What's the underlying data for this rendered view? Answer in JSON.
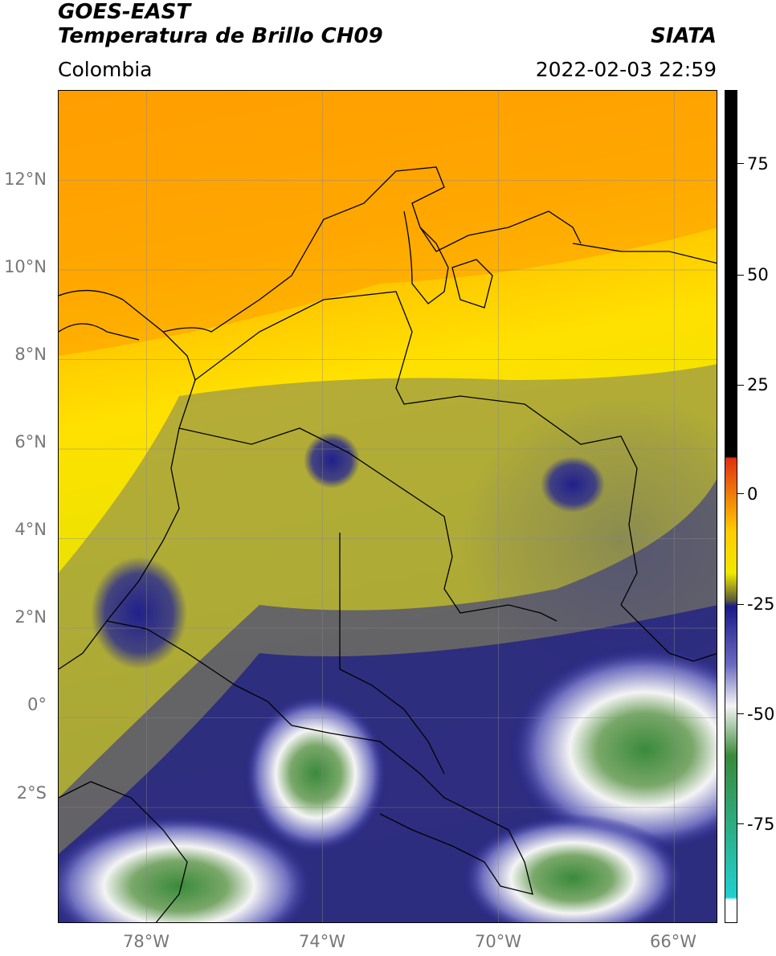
{
  "header": {
    "satellite": "GOES-EAST",
    "product": "Temperatura de Brillo CH09",
    "agency": "SIATA",
    "region": "Colombia",
    "datetime": "2022-02-03 22:59"
  },
  "map": {
    "lat_labels": [
      "12°N",
      "10°N",
      "8°N",
      "6°N",
      "4°N",
      "2°N",
      "0°",
      "2°S"
    ],
    "lon_labels": [
      "78°W",
      "74°W",
      "70°W",
      "66°W"
    ],
    "lat_range": [
      -4.6,
      14.0
    ],
    "lon_range": [
      -80.0,
      -65.0
    ],
    "grid": true
  },
  "colorbar": {
    "ticks": [
      "75",
      "50",
      "25",
      "0",
      "-25",
      "-50",
      "-75"
    ],
    "range": [
      -95,
      90
    ],
    "colors": {
      "positive": "#000000",
      "zero": "#e03010",
      "warm": "#ffcc00",
      "mid": "#5a5a3a",
      "cold": "#1a1a8a",
      "white": "#f4f4f4",
      "green": "#3a8a3a",
      "cyan": "#20d0d0"
    }
  }
}
